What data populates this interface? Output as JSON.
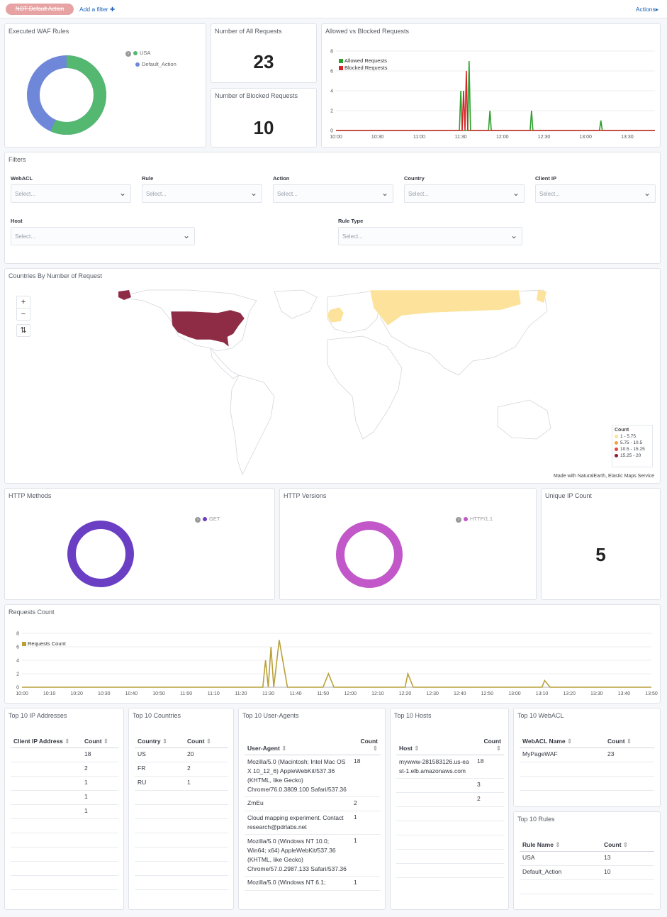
{
  "topbar": {
    "filter_pill": "NOT Default Action",
    "add_filter": "Add a filter",
    "actions": "Actions"
  },
  "panels": {
    "executed_waf_rules": {
      "title": "Executed WAF Rules",
      "legend": [
        "USA",
        "Default_Action"
      ],
      "values": [
        13,
        10
      ],
      "colors": [
        "#54b870",
        "#6f87d8"
      ]
    },
    "all_requests": {
      "title": "Number of All Requests",
      "value": "23"
    },
    "blocked_requests": {
      "title": "Number of Blocked Requests",
      "value": "10"
    },
    "allowed_vs_blocked": {
      "title": "Allowed vs Blocked Requests",
      "legend": [
        "Allowed Requests",
        "Blocked Requests"
      ]
    },
    "filters": {
      "title": "Filters",
      "fields": [
        {
          "label": "WebACL",
          "placeholder": "Select..."
        },
        {
          "label": "Rule",
          "placeholder": "Select..."
        },
        {
          "label": "Action",
          "placeholder": "Select..."
        },
        {
          "label": "Country",
          "placeholder": "Select..."
        },
        {
          "label": "Client IP",
          "placeholder": "Select..."
        },
        {
          "label": "Host",
          "placeholder": "Select..."
        },
        {
          "label": "Rule Type",
          "placeholder": "Select..."
        }
      ]
    },
    "countries_map": {
      "title": "Countries By Number of Request",
      "legend_title": "Count",
      "legend": [
        "1 - 5.75",
        "5.75 - 10.5",
        "10.5 - 15.25",
        "15.25 - 20"
      ],
      "legend_colors": [
        "#fce29a",
        "#f4a13c",
        "#e0473a",
        "#8e1a2e"
      ],
      "attribution": "Made with NaturalEarth, Elastic Maps Service",
      "controls": [
        "+",
        "−",
        "⇅"
      ]
    },
    "http_methods": {
      "title": "HTTP Methods",
      "legend": [
        "GET"
      ],
      "color": "#6b3fc4"
    },
    "http_versions": {
      "title": "HTTP Versions",
      "legend": [
        "HTTP/1.1"
      ],
      "color": "#c157c9"
    },
    "unique_ip": {
      "title": "Unique IP Count",
      "value": "5"
    },
    "requests_count": {
      "title": "Requests Count",
      "legend": [
        "Requests Count"
      ]
    },
    "top_ips": {
      "title": "Top 10 IP Addresses",
      "headers": [
        "Client IP Address",
        "Count"
      ],
      "rows": [
        [
          "",
          "18"
        ],
        [
          "",
          "2"
        ],
        [
          "",
          "1"
        ],
        [
          "",
          "1"
        ],
        [
          "",
          "1"
        ]
      ]
    },
    "top_countries": {
      "title": "Top 10 Countries",
      "headers": [
        "Country",
        "Count"
      ],
      "rows": [
        [
          "US",
          "20"
        ],
        [
          "FR",
          "2"
        ],
        [
          "RU",
          "1"
        ]
      ]
    },
    "top_user_agents": {
      "title": "Top 10 User-Agents",
      "headers": [
        "User-Agent",
        "Count"
      ],
      "rows": [
        [
          "Mozilla/5.0 (Macintosh; Intel Mac OS X 10_12_6) AppleWebKit/537.36 (KHTML, like Gecko) Chrome/76.0.3809.100 Safari/537.36",
          "18"
        ],
        [
          "ZmEu",
          "2"
        ],
        [
          "Cloud mapping experiment. Contact research@pdrlabs.net",
          "1"
        ],
        [
          "Mozilla/5.0 (Windows NT 10.0; Win64; x64) AppleWebKit/537.36 (KHTML, like Gecko) Chrome/57.0.2987.133 Safari/537.36",
          "1"
        ],
        [
          "Mozilla/5.0 (Windows NT 6.1;",
          "1"
        ]
      ]
    },
    "top_hosts": {
      "title": "Top 10 Hosts",
      "headers": [
        "Host",
        "Count"
      ],
      "rows": [
        [
          "mywww-281583126.us-east-1.elb.amazonaws.com",
          "18"
        ],
        [
          "",
          "3"
        ],
        [
          "",
          "2"
        ]
      ]
    },
    "top_webacl": {
      "title": "Top 10 WebACL",
      "headers": [
        "WebACL Name",
        "Count"
      ],
      "rows": [
        [
          "MyPageWAF",
          "23"
        ]
      ]
    },
    "top_rules": {
      "title": "Top 10 Rules",
      "headers": [
        "Rule Name",
        "Count"
      ],
      "rows": [
        [
          "USA",
          "13"
        ],
        [
          "Default_Action",
          "10"
        ]
      ]
    }
  },
  "chart_data": [
    {
      "type": "line",
      "title": "Allowed vs Blocked Requests",
      "x_ticks": [
        "10:00",
        "10:30",
        "11:00",
        "11:30",
        "12:00",
        "12:30",
        "13:00",
        "13:30"
      ],
      "y_ticks": [
        "0",
        "2",
        "4",
        "6",
        "8"
      ],
      "ylim": [
        0,
        8
      ],
      "xlim_minutes": [
        600,
        830
      ],
      "series": [
        {
          "name": "Allowed Requests",
          "color": "#2ca02c",
          "points": [
            [
              600,
              0
            ],
            [
              689,
              0
            ],
            [
              690,
              4
            ],
            [
              691,
              0
            ],
            [
              695,
              0
            ],
            [
              696,
              7
            ],
            [
              697,
              0
            ],
            [
              710,
              0
            ],
            [
              711,
              2
            ],
            [
              712,
              0
            ],
            [
              740,
              0
            ],
            [
              741,
              2
            ],
            [
              742,
              0
            ],
            [
              790,
              0
            ],
            [
              791,
              1
            ],
            [
              792,
              0
            ],
            [
              830,
              0
            ]
          ]
        },
        {
          "name": "Blocked Requests",
          "color": "#d62728",
          "points": [
            [
              600,
              0
            ],
            [
              691,
              0
            ],
            [
              692,
              4
            ],
            [
              693,
              0
            ],
            [
              694,
              6
            ],
            [
              695,
              0
            ],
            [
              830,
              0
            ]
          ]
        }
      ]
    },
    {
      "type": "line",
      "title": "Requests Count",
      "x_ticks": [
        "10:00",
        "10:10",
        "10:20",
        "10:30",
        "10:40",
        "10:50",
        "11:00",
        "11:10",
        "11:20",
        "11:30",
        "11:40",
        "11:50",
        "12:00",
        "12:10",
        "12:20",
        "12:30",
        "12:40",
        "12:50",
        "13:00",
        "13:10",
        "13:20",
        "13:30",
        "13:40",
        "13:50"
      ],
      "y_ticks": [
        "0",
        "2",
        "4",
        "6",
        "8"
      ],
      "ylim": [
        0,
        8
      ],
      "xlim_minutes": [
        600,
        830
      ],
      "series": [
        {
          "name": "Requests Count",
          "color": "#b9a039",
          "points": [
            [
              600,
              0
            ],
            [
              688,
              0
            ],
            [
              689,
              4
            ],
            [
              690,
              0
            ],
            [
              691,
              6
            ],
            [
              692,
              0
            ],
            [
              694,
              7
            ],
            [
              697,
              0
            ],
            [
              710,
              0
            ],
            [
              712,
              2
            ],
            [
              714,
              0
            ],
            [
              740,
              0
            ],
            [
              741,
              2
            ],
            [
              743,
              0
            ],
            [
              790,
              0
            ],
            [
              791,
              1
            ],
            [
              793,
              0
            ],
            [
              830,
              0
            ]
          ]
        }
      ]
    }
  ]
}
